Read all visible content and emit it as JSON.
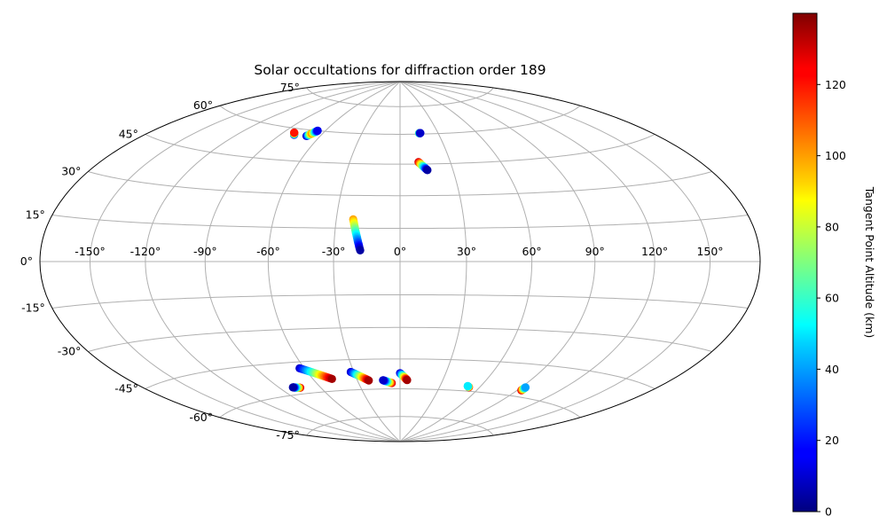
{
  "chart_data": {
    "type": "scatter",
    "projection": "hammer",
    "title": "Solar occultations for diffraction order 189",
    "lon_ticks": [
      -150,
      -120,
      -90,
      -60,
      -30,
      0,
      30,
      60,
      90,
      120,
      150
    ],
    "lat_ticks": [
      75,
      60,
      45,
      30,
      15,
      0,
      -15,
      -30,
      -45,
      -60,
      -75
    ],
    "lon_tick_labels": [
      "-150°",
      "-120°",
      "-90°",
      "-60°",
      "-30°",
      "0°",
      "30°",
      "60°",
      "90°",
      "120°",
      "150°"
    ],
    "lat_tick_labels": [
      "75°",
      "60°",
      "45°",
      "30°",
      "15°",
      "0°",
      "-15°",
      "-30°",
      "-45°",
      "-60°",
      "-75°"
    ],
    "grid": true,
    "colormap": "jet",
    "colorbar": {
      "label": "Tangent Point Altitude (km)",
      "range": [
        0,
        140
      ],
      "ticks": [
        0,
        20,
        40,
        60,
        80,
        100,
        120
      ],
      "position": "right"
    },
    "series": [
      {
        "lon": [
          -80,
          -82
        ],
        "lat": [
          57,
          58
        ],
        "alt": [
          5,
          120
        ]
      },
      {
        "lon": [
          -70,
          -68,
          -66
        ],
        "lat": [
          57,
          58.5,
          60
        ],
        "alt": [
          5,
          105,
          15
        ]
      },
      {
        "lon": [
          15,
          16
        ],
        "lat": [
          60.5,
          60.5
        ],
        "alt": [
          80,
          10
        ]
      },
      {
        "lon": [
          11,
          15.5
        ],
        "lat": [
          46,
          42
        ],
        "alt": [
          130,
          5
        ]
      },
      {
        "lon": [
          -22,
          -18
        ],
        "lat": [
          19,
          5
        ],
        "alt": [
          100,
          5
        ]
      },
      {
        "lon": [
          -75,
          -80
        ],
        "lat": [
          -57,
          -56.5
        ],
        "alt": [
          130,
          5
        ]
      },
      {
        "lon": [
          -63,
          -47
        ],
        "lat": [
          -48,
          -54
        ],
        "alt": [
          10,
          135
        ]
      },
      {
        "lon": [
          -32,
          -22
        ],
        "lat": [
          -51,
          -55.5
        ],
        "alt": [
          10,
          135
        ]
      },
      {
        "lon": [
          -6,
          -12
        ],
        "lat": [
          -57,
          -55.5
        ],
        "alt": [
          130,
          10
        ]
      },
      {
        "lon": [
          0,
          5
        ],
        "lat": [
          -52,
          -55.5
        ],
        "alt": [
          10,
          135
        ]
      },
      {
        "lon": [
          52,
          50.5
        ],
        "lat": [
          -58,
          -57.5
        ],
        "alt": [
          130,
          50
        ]
      },
      {
        "lon": [
          93,
          93
        ],
        "lat": [
          -57,
          -55.5
        ],
        "alt": [
          130,
          40
        ]
      }
    ]
  }
}
